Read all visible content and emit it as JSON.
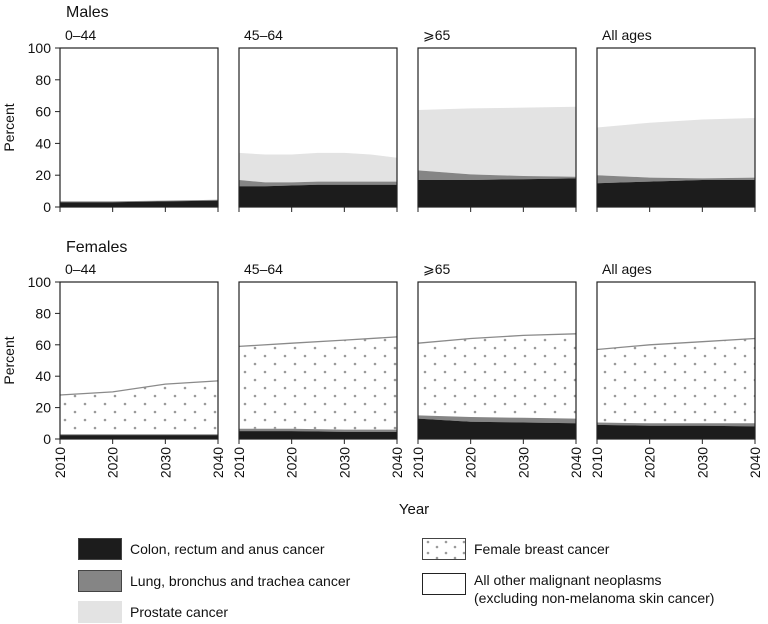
{
  "chart_data": {
    "type": "area",
    "x_label": "Year",
    "y_label": "Percent",
    "x_ticks": [
      "2010",
      "2020",
      "2030",
      "2040"
    ],
    "y_ticks": [
      "0",
      "20",
      "40",
      "60",
      "80",
      "100"
    ],
    "xlim": [
      2010,
      2040
    ],
    "ylim": [
      0,
      100
    ],
    "stack": "cumulative",
    "groups": [
      {
        "title": "Males",
        "panels": [
          {
            "subtitle": "0–44",
            "years": [
              2010,
              2020,
              2030,
              2040
            ],
            "layers": {
              "colon": [
                3,
                3,
                3.5,
                4
              ],
              "lung": [
                3.5,
                3.5,
                4,
                4.5
              ],
              "prostate": [
                3.5,
                3.5,
                4,
                4.5
              ],
              "breast": null
            }
          },
          {
            "subtitle": "45–64",
            "years": [
              2010,
              2015,
              2020,
              2025,
              2030,
              2035,
              2040
            ],
            "layers": {
              "colon": [
                13,
                13,
                13.5,
                14,
                14,
                14,
                14
              ],
              "lung": [
                17,
                15.5,
                15.5,
                16,
                16,
                16,
                16
              ],
              "prostate": [
                34,
                33,
                33,
                34,
                34,
                33,
                31
              ],
              "breast": null
            }
          },
          {
            "subtitle": "⩾65",
            "years": [
              2010,
              2020,
              2030,
              2040
            ],
            "layers": {
              "colon": [
                17,
                17,
                17.5,
                18
              ],
              "lung": [
                23,
                20.5,
                19.5,
                19
              ],
              "prostate": [
                61,
                62,
                62.5,
                63
              ],
              "breast": null
            }
          },
          {
            "subtitle": "All ages",
            "years": [
              2010,
              2020,
              2030,
              2040
            ],
            "layers": {
              "colon": [
                15,
                16,
                17,
                17
              ],
              "lung": [
                20,
                18.5,
                18,
                18.5
              ],
              "prostate": [
                50,
                53,
                55,
                56
              ],
              "breast": null
            }
          }
        ]
      },
      {
        "title": "Females",
        "panels": [
          {
            "subtitle": "0–44",
            "years": [
              2010,
              2020,
              2030,
              2040
            ],
            "layers": {
              "colon": [
                2.5,
                2.5,
                2.5,
                2.5
              ],
              "lung": [
                3,
                3,
                3,
                3
              ],
              "prostate": null,
              "breast": [
                28,
                30,
                35,
                37
              ]
            }
          },
          {
            "subtitle": "45–64",
            "years": [
              2010,
              2020,
              2030,
              2040
            ],
            "layers": {
              "colon": [
                5,
                5,
                4.5,
                4.5
              ],
              "lung": [
                6.5,
                6.5,
                6,
                6
              ],
              "prostate": null,
              "breast": [
                59,
                61,
                63,
                65
              ]
            }
          },
          {
            "subtitle": "⩾65",
            "years": [
              2010,
              2020,
              2030,
              2040
            ],
            "layers": {
              "colon": [
                13,
                11,
                10.5,
                10
              ],
              "lung": [
                15,
                14,
                13.5,
                13
              ],
              "prostate": null,
              "breast": [
                61,
                64,
                66,
                67
              ]
            }
          },
          {
            "subtitle": "All ages",
            "years": [
              2010,
              2020,
              2030,
              2040
            ],
            "layers": {
              "colon": [
                9,
                8.5,
                8.5,
                8
              ],
              "lung": [
                10.5,
                10,
                10,
                10
              ],
              "prostate": null,
              "breast": [
                57,
                60,
                62,
                64
              ]
            }
          }
        ]
      }
    ],
    "legend": [
      {
        "key": "colon",
        "label": "Colon, rectum and anus cancer"
      },
      {
        "key": "lung",
        "label": "Lung, bronchus and trachea cancer"
      },
      {
        "key": "prostate",
        "label": "Prostate cancer"
      },
      {
        "key": "breast",
        "label": "Female breast cancer"
      },
      {
        "key": "other",
        "label": "All other malignant neoplasms",
        "label2": "(excluding non-melanoma skin cancer)"
      }
    ],
    "colors": {
      "colon": "#1c1c1c",
      "lung": "#858585",
      "prostate": "#e3e3e3",
      "breast_dot": "#9a9a9a",
      "other": "#ffffff"
    }
  }
}
